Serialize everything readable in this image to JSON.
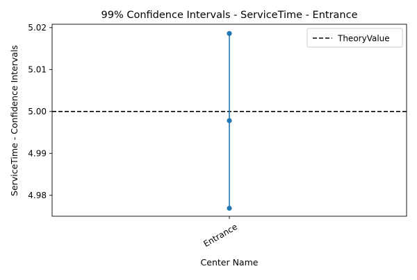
{
  "chart_data": {
    "type": "scatter",
    "title": "99% Confidence Intervals - ServiceTime - Entrance",
    "xlabel": "Center Name",
    "ylabel": "ServiceTime - Confidence Intervals",
    "categories": [
      "Entrance"
    ],
    "series": [
      {
        "values": [
          {
            "category": "Entrance",
            "lower": 4.9769,
            "mean": 4.9978,
            "upper": 5.0186
          }
        ],
        "color": "#1f77b4"
      }
    ],
    "reference_line": {
      "name": "TheoryValue",
      "value": 5.0,
      "style": "dashed",
      "color": "#000000"
    },
    "ylim": [
      4.975,
      5.0208
    ],
    "yticks": [
      4.98,
      4.99,
      5.0,
      5.01,
      5.02
    ],
    "ytick_labels": [
      "4.98",
      "4.99",
      "5.00",
      "5.01",
      "5.02"
    ],
    "xtick_rotation": 30,
    "grid": false,
    "legend": {
      "position": "top-right",
      "entries": [
        "TheoryValue"
      ]
    }
  }
}
